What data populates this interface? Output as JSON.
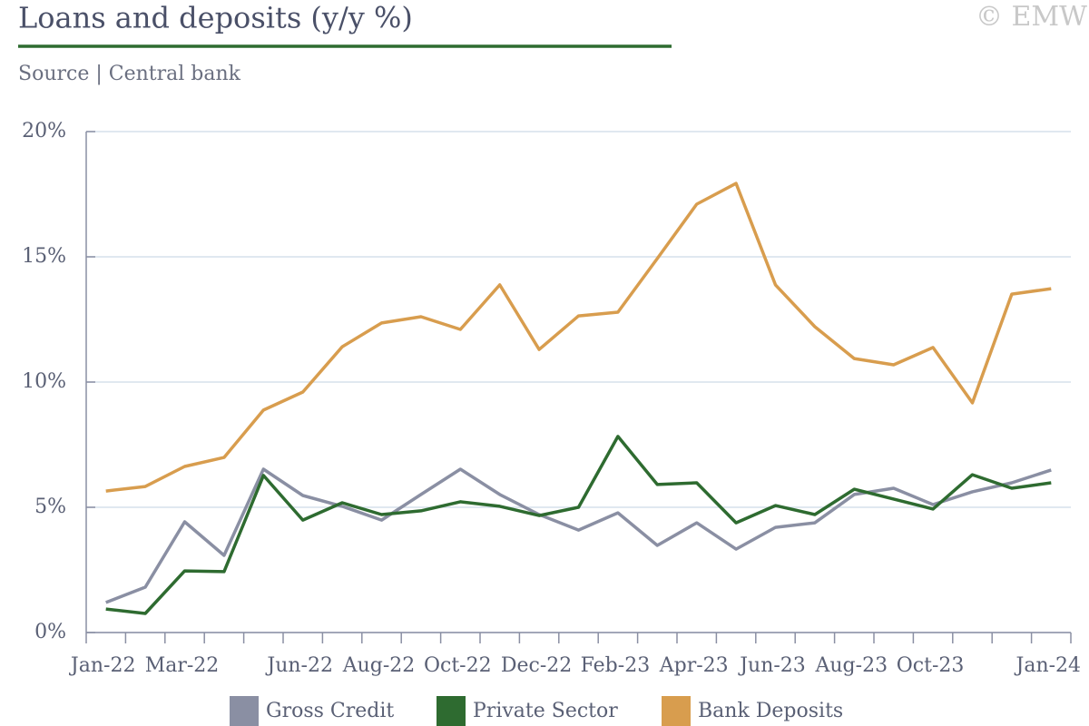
{
  "chart_data": {
    "type": "line",
    "title": "Loans and deposits (y/y %)",
    "subtitle": "Source | Central bank",
    "watermark": "© EMW",
    "categories": [
      "Jan-22",
      null,
      "Mar-22",
      null,
      null,
      "Jun-22",
      null,
      "Aug-22",
      null,
      "Oct-22",
      null,
      "Dec-22",
      null,
      "Feb-23",
      null,
      "Apr-23",
      null,
      "Jun-23",
      null,
      "Aug-23",
      null,
      "Oct-23",
      null,
      null,
      "Jan-24"
    ],
    "series": [
      {
        "name": "Gross Credit",
        "color": "#8a8fa3",
        "values": [
          1.2,
          1.81,
          4.42,
          3.08,
          6.52,
          5.47,
          5.04,
          4.49,
          5.51,
          6.52,
          5.51,
          4.71,
          4.09,
          4.78,
          3.48,
          4.38,
          3.33,
          4.2,
          4.38,
          5.51,
          5.76,
          5.11,
          5.62,
          5.98,
          6.49
        ]
      },
      {
        "name": "Private Sector",
        "color": "#2e6b30",
        "values": [
          0.94,
          0.76,
          2.46,
          2.43,
          6.27,
          4.49,
          5.18,
          4.71,
          4.86,
          5.22,
          5.04,
          4.67,
          5.0,
          7.83,
          5.91,
          5.98,
          4.38,
          5.07,
          4.71,
          5.72,
          5.33,
          4.93,
          6.3,
          5.76,
          5.98
        ]
      },
      {
        "name": "Bank Deposits",
        "color": "#d89d4e",
        "values": [
          5.65,
          5.83,
          6.63,
          6.99,
          8.88,
          9.6,
          11.41,
          12.36,
          12.61,
          12.1,
          13.88,
          11.3,
          12.64,
          12.79,
          14.93,
          17.1,
          17.93,
          13.88,
          12.21,
          10.94,
          10.69,
          11.38,
          9.17,
          13.51,
          13.73
        ]
      }
    ],
    "ylim": [
      0,
      20
    ],
    "yticks": [
      {
        "value": 0,
        "label": "0%"
      },
      {
        "value": 5,
        "label": "5%"
      },
      {
        "value": 10,
        "label": "10%"
      },
      {
        "value": 15,
        "label": "15%"
      },
      {
        "value": 20,
        "label": "20%"
      }
    ],
    "grid": true,
    "legend": "bottom"
  }
}
